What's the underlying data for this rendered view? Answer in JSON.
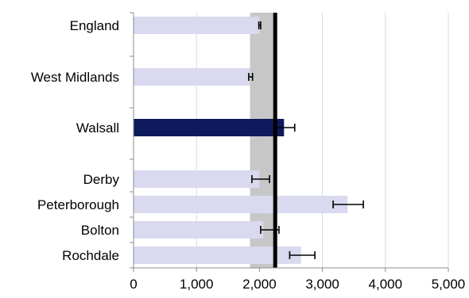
{
  "chart_data": {
    "type": "bar",
    "orientation": "horizontal",
    "categories": [
      "England",
      "West Midlands",
      "Walsall",
      "Derby",
      "Peterborough",
      "Bolton",
      "Rochdale"
    ],
    "series": [
      {
        "values": [
          2000,
          1850,
          2390,
          2000,
          3400,
          2060,
          2660
        ],
        "error_low": [
          1990,
          1830,
          2240,
          1880,
          3170,
          2020,
          2480
        ],
        "error_high": [
          2020,
          1890,
          2560,
          2160,
          3650,
          2310,
          2880
        ],
        "highlighted": [
          false,
          false,
          true,
          false,
          false,
          false,
          false
        ]
      }
    ],
    "reference_line": {
      "value": 2250
    },
    "reference_band": {
      "low": 1850,
      "high": 2240
    },
    "x_ticks": [
      "0",
      "1,000",
      "2,000",
      "3,000",
      "4,000",
      "5,000"
    ],
    "xlim": [
      0,
      5000
    ],
    "grid": "vertical",
    "colors": {
      "bar": "#d9d9ef",
      "bar_highlight": "#0d1a5c",
      "band": "#c7c7c7",
      "reference_line": "#000000",
      "error_bar": "#000000",
      "grid": "#d9d9d9",
      "axis": "#8c8c8c"
    }
  }
}
